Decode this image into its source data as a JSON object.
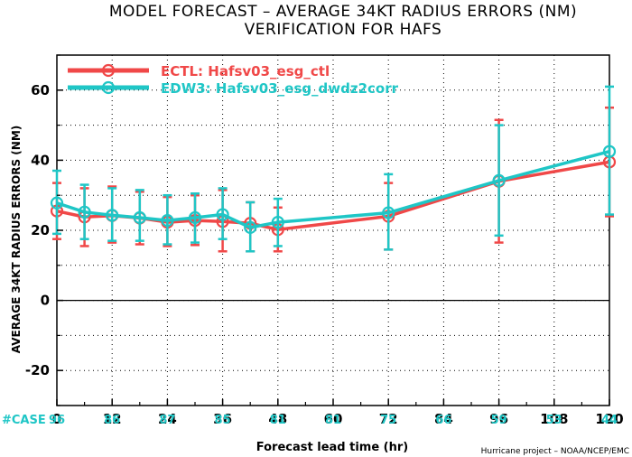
{
  "chart_data": {
    "type": "line",
    "title": [
      "MODEL FORECAST – AVERAGE 34KT RADIUS ERRORS (NM)",
      "VERIFICATION FOR HAFS"
    ],
    "xlabel": "Forecast lead time (hr)",
    "ylabel": "AVERAGE 34KT RADIUS ERRORS (NM)",
    "xlim": [
      0,
      120
    ],
    "ylim": [
      -30,
      70
    ],
    "xticks": [
      0,
      12,
      24,
      36,
      48,
      60,
      72,
      84,
      96,
      108,
      120
    ],
    "yticks": [
      -20,
      0,
      20,
      40,
      60
    ],
    "case_label": "#CASE",
    "cases": [
      {
        "x": 0,
        "n": "96"
      },
      {
        "x": 12,
        "n": "86"
      },
      {
        "x": 24,
        "n": "87"
      },
      {
        "x": 36,
        "n": "85"
      },
      {
        "x": 48,
        "n": "81"
      },
      {
        "x": 60,
        "n": "81"
      },
      {
        "x": 72,
        "n": "75"
      },
      {
        "x": 84,
        "n": "66"
      },
      {
        "x": 96,
        "n": "59"
      },
      {
        "x": 108,
        "n": "53"
      },
      {
        "x": 120,
        "n": "44"
      }
    ],
    "series": [
      {
        "name": "ECTL: Hafsv03_esg_ctl",
        "color": "#f04848",
        "x": [
          0,
          6,
          12,
          18,
          24,
          30,
          36,
          42,
          48,
          72,
          96,
          120
        ],
        "y": [
          25.5,
          23.8,
          24.2,
          23.5,
          22.3,
          22.8,
          22.5,
          22.0,
          20.2,
          24.0,
          34.0,
          39.5
        ],
        "err_low": [
          17.5,
          15.5,
          16.5,
          16.0,
          15.5,
          15.8,
          14.0,
          14.0,
          14.0,
          14.5,
          16.5,
          24.0
        ],
        "err_high": [
          33.5,
          32.0,
          32.5,
          31.0,
          29.5,
          30.0,
          31.5,
          28.0,
          26.5,
          33.5,
          51.5,
          55.0
        ]
      },
      {
        "name": "EDW3: Hafsv03_esg_dwdz2corr",
        "color": "#1fc6c6",
        "x": [
          0,
          6,
          12,
          18,
          24,
          30,
          36,
          42,
          48,
          72,
          96,
          120
        ],
        "y": [
          27.8,
          25.2,
          24.3,
          23.6,
          22.8,
          23.6,
          24.5,
          20.8,
          22.3,
          25.0,
          34.2,
          42.5
        ],
        "err_low": [
          19.0,
          17.5,
          17.0,
          17.0,
          16.0,
          16.5,
          17.5,
          14.0,
          15.5,
          14.5,
          18.5,
          24.5
        ],
        "err_high": [
          37.0,
          33.0,
          32.0,
          31.5,
          30.0,
          30.5,
          32.0,
          28.0,
          29.0,
          36.0,
          50.0,
          61.0
        ]
      }
    ],
    "legend_position": "top-left",
    "grid": true,
    "zero_line": true
  },
  "credit": "Hurricane project – NOAA/NCEP/EMC"
}
